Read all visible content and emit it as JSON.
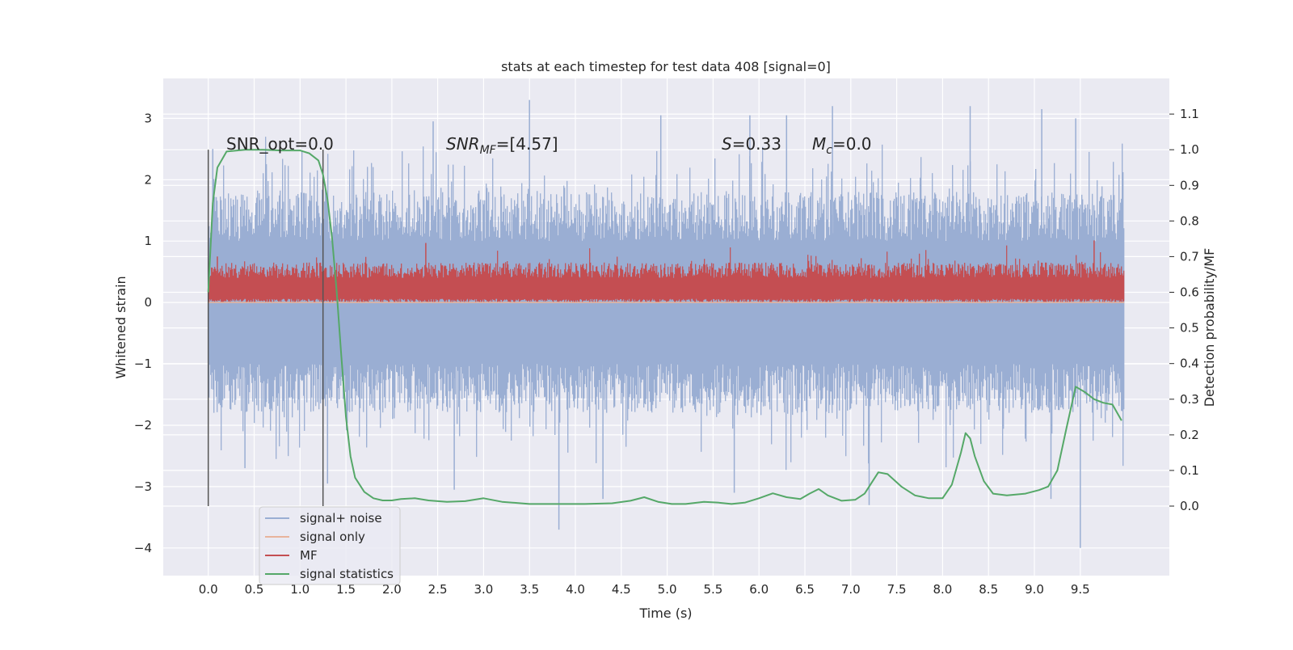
{
  "chart_data": {
    "type": "line",
    "title": "stats at each timestep for test data 408 [signal=0]",
    "xlabel": "Time (s)",
    "ylabel": "Whitened strain",
    "ylabel_right": "Detection probability/MF",
    "xlim": [
      -0.49,
      10.47
    ],
    "ylim": [
      -4.45,
      3.65
    ],
    "ylim_right": [
      -0.195,
      1.2
    ],
    "x_ticks": [
      0.0,
      0.5,
      1.0,
      1.5,
      2.0,
      2.5,
      3.0,
      3.5,
      4.0,
      4.5,
      5.0,
      5.5,
      6.0,
      6.5,
      7.0,
      7.5,
      8.0,
      8.5,
      9.0,
      9.5
    ],
    "x_tick_labels": [
      "0.0",
      "0.5",
      "1.0",
      "1.5",
      "2.0",
      "2.5",
      "3.0",
      "3.5",
      "4.0",
      "4.5",
      "5.0",
      "5.5",
      "6.0",
      "6.5",
      "7.0",
      "7.5",
      "8.0",
      "8.5",
      "9.0",
      "9.5"
    ],
    "y_ticks": [
      -4,
      -3,
      -2,
      -1,
      0,
      1,
      2,
      3
    ],
    "y_tick_labels": [
      "−4",
      "−3",
      "−2",
      "−1",
      "0",
      "1",
      "2",
      "3"
    ],
    "y_right_ticks": [
      0.0,
      0.1,
      0.2,
      0.3,
      0.4,
      0.5,
      0.6,
      0.7,
      0.8,
      0.9,
      1.0,
      1.1
    ],
    "y_right_tick_labels": [
      "0.0",
      "0.1",
      "0.2",
      "0.3",
      "0.4",
      "0.5",
      "0.6",
      "0.7",
      "0.8",
      "0.9",
      "1.0",
      "1.1"
    ],
    "grid": true,
    "legend": "lower-left",
    "annotations": {
      "snr_opt": "SNR_opt=0.0",
      "snr_mf_base": "SNR",
      "snr_mf_sub": "MF",
      "snr_mf_value": "=[4.57]",
      "s_base": "S",
      "s_value": "=0.33",
      "mc_base": "M",
      "mc_sub": "c",
      "mc_value": "=0.0"
    },
    "vertical_lines_x": [
      0.0,
      1.25
    ],
    "series": [
      {
        "name": "signal+ noise",
        "color": "#9aaed3",
        "axis": "left",
        "x_range": [
          0.0,
          9.98
        ],
        "typical_range": [
          -1.6,
          1.6
        ],
        "peak_max": 3.3,
        "peak_min": -4.0
      },
      {
        "name": "signal only",
        "color": "#e8b49c",
        "axis": "left",
        "x": [
          0.0,
          9.98
        ],
        "values": [
          0.0,
          0.0
        ]
      },
      {
        "name": "MF",
        "color": "#c44e52",
        "axis": "left",
        "x_range": [
          0.0,
          9.98
        ],
        "typical_range": [
          0.0,
          0.6
        ],
        "peak_max": 1.0
      },
      {
        "name": "signal statistics",
        "color": "#55a868",
        "axis": "right",
        "x": [
          0.0,
          0.05,
          0.1,
          0.2,
          0.4,
          0.6,
          0.8,
          1.0,
          1.1,
          1.2,
          1.25,
          1.3,
          1.35,
          1.4,
          1.45,
          1.5,
          1.55,
          1.6,
          1.7,
          1.8,
          1.9,
          2.0,
          2.1,
          2.25,
          2.4,
          2.6,
          2.8,
          3.0,
          3.2,
          3.5,
          3.8,
          4.1,
          4.4,
          4.6,
          4.75,
          4.9,
          5.05,
          5.2,
          5.4,
          5.55,
          5.7,
          5.85,
          6.0,
          6.15,
          6.3,
          6.45,
          6.55,
          6.65,
          6.75,
          6.9,
          7.05,
          7.15,
          7.3,
          7.4,
          7.55,
          7.7,
          7.85,
          8.0,
          8.1,
          8.2,
          8.25,
          8.3,
          8.35,
          8.45,
          8.55,
          8.7,
          8.9,
          9.05,
          9.15,
          9.25,
          9.35,
          9.45,
          9.55,
          9.65,
          9.75,
          9.85,
          9.95
        ],
        "values": [
          0.6,
          0.85,
          0.95,
          0.995,
          1.0,
          1.0,
          0.998,
          0.998,
          0.99,
          0.97,
          0.93,
          0.86,
          0.75,
          0.6,
          0.42,
          0.25,
          0.14,
          0.08,
          0.04,
          0.022,
          0.016,
          0.016,
          0.02,
          0.022,
          0.016,
          0.012,
          0.014,
          0.022,
          0.012,
          0.006,
          0.006,
          0.006,
          0.008,
          0.015,
          0.025,
          0.012,
          0.006,
          0.006,
          0.012,
          0.01,
          0.006,
          0.01,
          0.022,
          0.036,
          0.025,
          0.02,
          0.035,
          0.048,
          0.03,
          0.015,
          0.018,
          0.035,
          0.095,
          0.09,
          0.055,
          0.03,
          0.022,
          0.022,
          0.06,
          0.15,
          0.205,
          0.19,
          0.14,
          0.07,
          0.035,
          0.03,
          0.035,
          0.045,
          0.055,
          0.1,
          0.22,
          0.335,
          0.32,
          0.3,
          0.29,
          0.285,
          0.24
        ]
      }
    ]
  }
}
